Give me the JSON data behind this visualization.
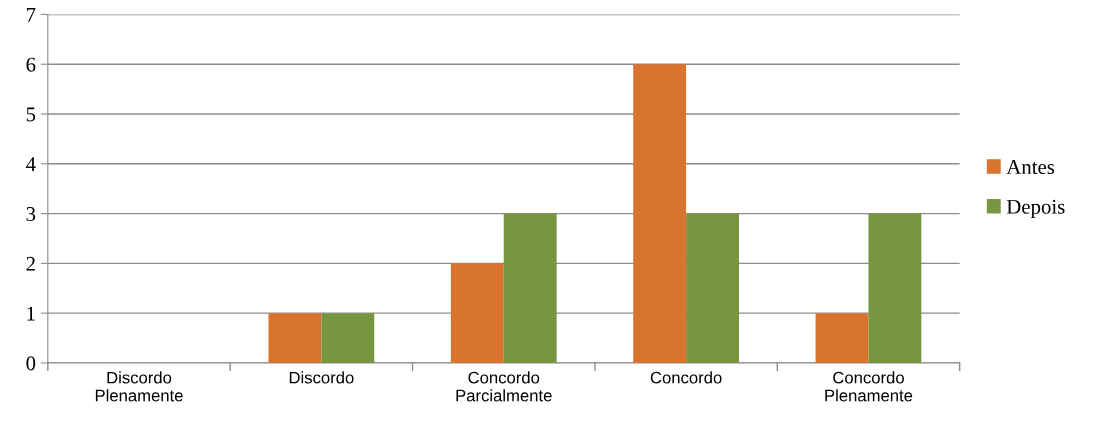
{
  "chart_data": {
    "type": "bar",
    "categories": [
      "Discordo\nPlenamente",
      "Discordo",
      "Concordo\nParcialmente",
      "Concordo",
      "Concordo\nPlenamente"
    ],
    "series": [
      {
        "name": "Antes",
        "color": "#d9742e",
        "values": [
          0,
          1,
          2,
          6,
          1
        ]
      },
      {
        "name": "Depois",
        "color": "#76963f",
        "values": [
          0,
          1,
          3,
          3,
          3
        ]
      }
    ],
    "ylim": [
      0,
      7
    ],
    "yticks": [
      0,
      1,
      2,
      3,
      4,
      5,
      6,
      7
    ],
    "grid": "y",
    "legend": "right"
  }
}
